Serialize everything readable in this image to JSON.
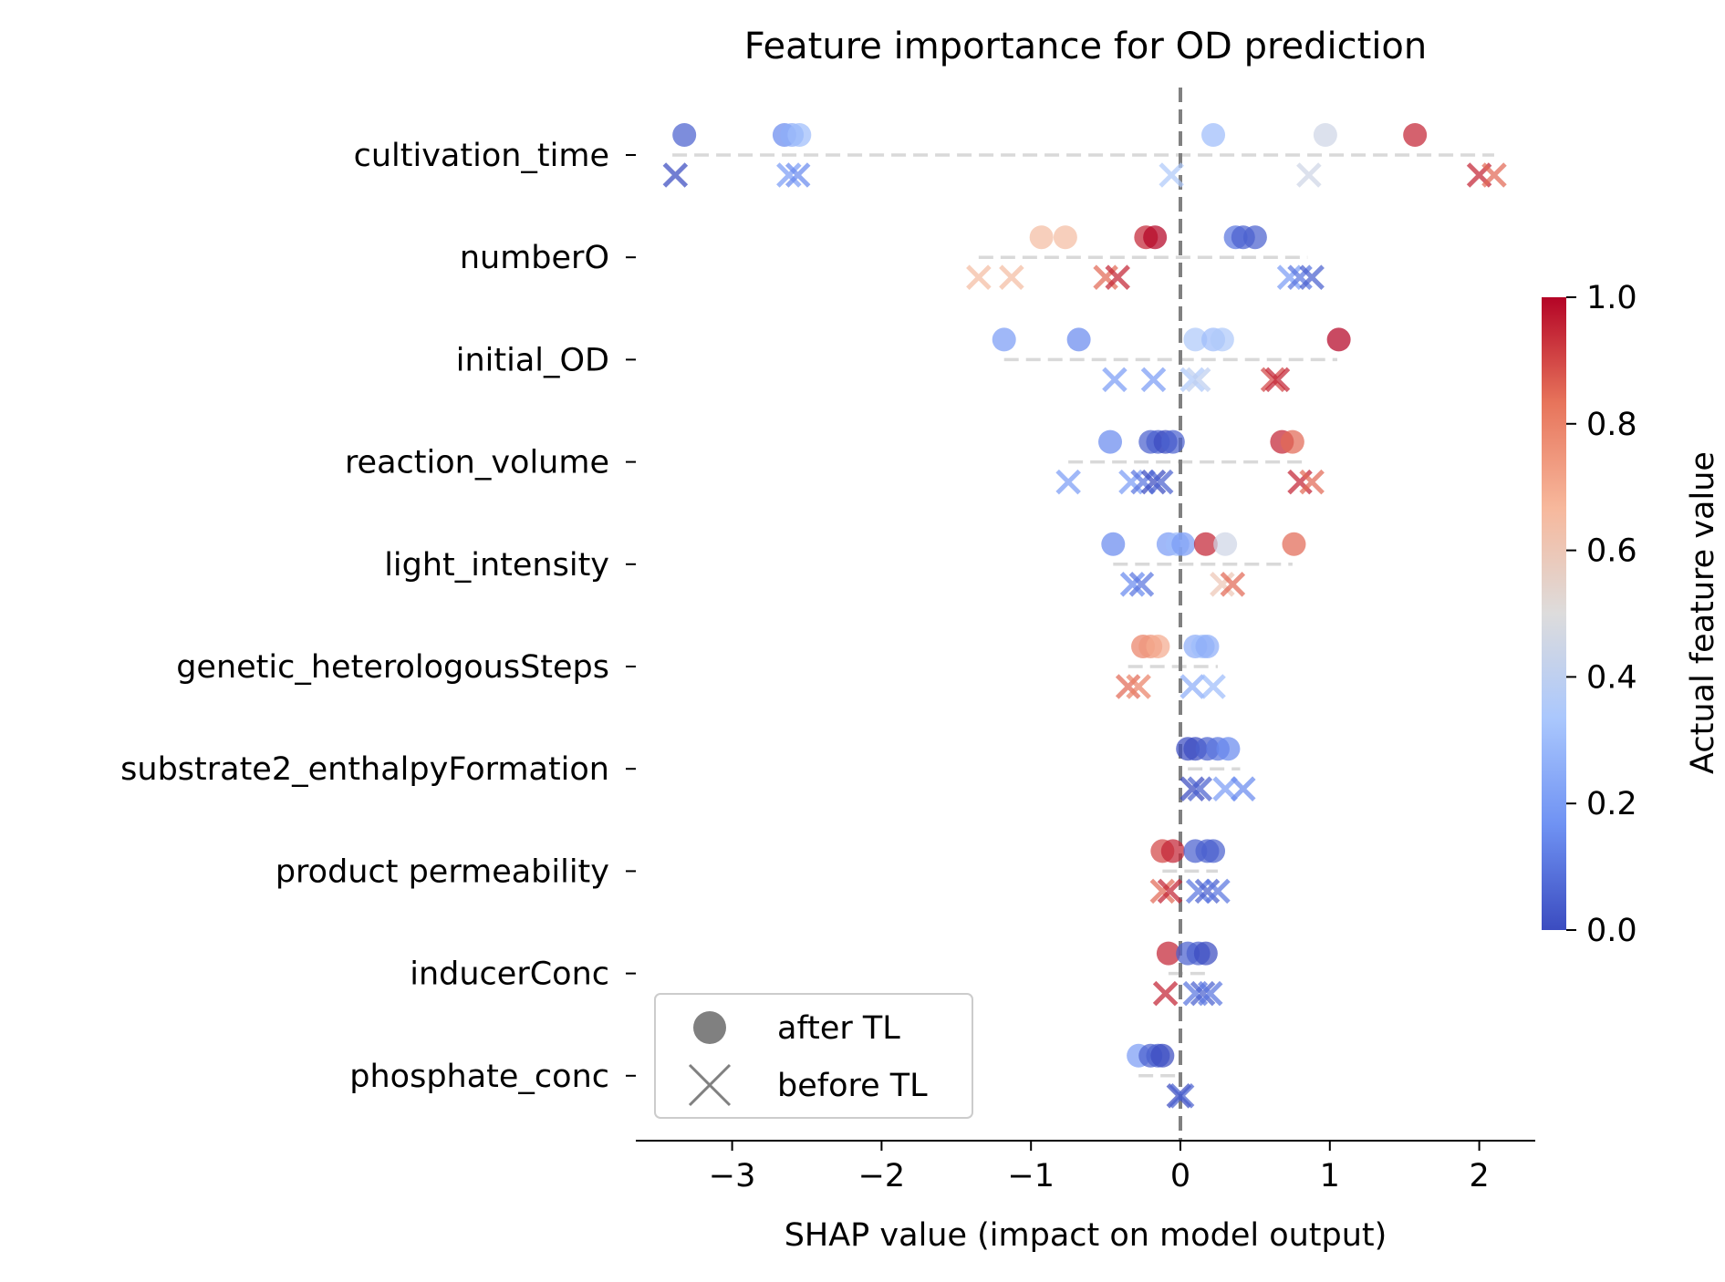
{
  "chart_data": {
    "type": "scatter",
    "title": "Feature importance for OD prediction",
    "xlabel": "SHAP value (impact on model output)",
    "ylabel": "",
    "xlim": [
      -3.65,
      2.4
    ],
    "x_ticks": [
      -3,
      -2,
      -1,
      0,
      1,
      2
    ],
    "x_tick_labels": [
      "−3",
      "−2",
      "−1",
      "0",
      "1",
      "2"
    ],
    "zero_line": {
      "x": 0,
      "style": "dashed",
      "color": "#808080"
    },
    "features": [
      "cultivation_time",
      "numberO",
      "initial_OD",
      "reaction_volume",
      "light_intensity",
      "genetic_heterologousSteps",
      "substrate2_enthalpyFormation",
      "product permeability",
      "inducerConc",
      "phosphate_conc"
    ],
    "range_lines": [
      {
        "feature": "cultivation_time",
        "min": -3.4,
        "max": 2.1
      },
      {
        "feature": "numberO",
        "min": -1.35,
        "max": 0.85
      },
      {
        "feature": "initial_OD",
        "min": -1.18,
        "max": 1.05
      },
      {
        "feature": "reaction_volume",
        "min": -0.75,
        "max": 0.85
      },
      {
        "feature": "light_intensity",
        "min": -0.45,
        "max": 0.75
      },
      {
        "feature": "genetic_heterologousSteps",
        "min": -0.35,
        "max": 0.25
      },
      {
        "feature": "substrate2_enthalpyFormation",
        "min": 0.05,
        "max": 0.4
      },
      {
        "feature": "product permeability",
        "min": -0.12,
        "max": 0.25
      },
      {
        "feature": "inducerConc",
        "min": -0.08,
        "max": 0.2
      },
      {
        "feature": "phosphate_conc",
        "min": -0.28,
        "max": 0.0
      }
    ],
    "series": [
      {
        "name": "after TL",
        "marker": "circle",
        "points": {
          "cultivation_time": [
            [
              -3.32,
              0.05
            ],
            [
              -2.65,
              0.15
            ],
            [
              -2.6,
              0.25
            ],
            [
              -2.55,
              0.3
            ],
            [
              0.22,
              0.3
            ],
            [
              0.97,
              0.45
            ],
            [
              1.57,
              0.95
            ]
          ],
          "numberO": [
            [
              -0.93,
              0.65
            ],
            [
              -0.77,
              0.65
            ],
            [
              -0.23,
              0.95
            ],
            [
              -0.17,
              1.0
            ],
            [
              0.37,
              0.1
            ],
            [
              0.42,
              0.05
            ],
            [
              0.5,
              0.05
            ]
          ],
          "initial_OD": [
            [
              -1.18,
              0.2
            ],
            [
              -0.68,
              0.15
            ],
            [
              0.1,
              0.35
            ],
            [
              0.22,
              0.3
            ],
            [
              0.28,
              0.35
            ],
            [
              1.06,
              1.0
            ]
          ],
          "reaction_volume": [
            [
              -0.47,
              0.15
            ],
            [
              -0.2,
              0.05
            ],
            [
              -0.15,
              0.05
            ],
            [
              -0.1,
              0.0
            ],
            [
              -0.05,
              0.05
            ],
            [
              0.68,
              0.95
            ],
            [
              0.75,
              0.85
            ]
          ],
          "light_intensity": [
            [
              -0.45,
              0.15
            ],
            [
              -0.08,
              0.2
            ],
            [
              -0.02,
              0.3
            ],
            [
              0.02,
              0.2
            ],
            [
              0.17,
              0.95
            ],
            [
              0.3,
              0.45
            ],
            [
              0.76,
              0.85
            ]
          ],
          "genetic_heterologousSteps": [
            [
              -0.25,
              0.8
            ],
            [
              -0.2,
              0.75
            ],
            [
              -0.15,
              0.7
            ],
            [
              0.1,
              0.25
            ],
            [
              0.15,
              0.3
            ],
            [
              0.18,
              0.25
            ]
          ],
          "substrate2_enthalpyFormation": [
            [
              0.05,
              0.0
            ],
            [
              0.1,
              0.0
            ],
            [
              0.18,
              0.05
            ],
            [
              0.25,
              0.1
            ],
            [
              0.32,
              0.15
            ]
          ],
          "product permeability": [
            [
              -0.12,
              0.9
            ],
            [
              -0.05,
              0.95
            ],
            [
              0.1,
              0.05
            ],
            [
              0.18,
              0.05
            ],
            [
              0.22,
              0.05
            ]
          ],
          "inducerConc": [
            [
              -0.08,
              0.95
            ],
            [
              0.05,
              0.05
            ],
            [
              0.12,
              0.05
            ],
            [
              0.17,
              0.0
            ]
          ],
          "phosphate_conc": [
            [
              -0.28,
              0.2
            ],
            [
              -0.2,
              0.05
            ],
            [
              -0.15,
              0.05
            ],
            [
              -0.12,
              0.0
            ]
          ]
        }
      },
      {
        "name": "before TL",
        "marker": "x",
        "points": {
          "cultivation_time": [
            [
              -3.38,
              0.0
            ],
            [
              -2.62,
              0.2
            ],
            [
              -2.56,
              0.15
            ],
            [
              -0.06,
              0.35
            ],
            [
              0.86,
              0.45
            ],
            [
              2.0,
              0.95
            ],
            [
              2.1,
              0.85
            ]
          ],
          "numberO": [
            [
              -1.35,
              0.65
            ],
            [
              -1.13,
              0.65
            ],
            [
              -0.5,
              0.85
            ],
            [
              -0.42,
              0.95
            ],
            [
              0.73,
              0.2
            ],
            [
              0.8,
              0.1
            ],
            [
              0.88,
              0.05
            ]
          ],
          "initial_OD": [
            [
              -0.44,
              0.2
            ],
            [
              -0.18,
              0.2
            ],
            [
              0.08,
              0.35
            ],
            [
              0.12,
              0.4
            ],
            [
              0.62,
              0.9
            ],
            [
              0.65,
              0.95
            ]
          ],
          "reaction_volume": [
            [
              -0.75,
              0.2
            ],
            [
              -0.33,
              0.2
            ],
            [
              -0.25,
              0.1
            ],
            [
              -0.18,
              0.0
            ],
            [
              -0.13,
              0.05
            ],
            [
              0.8,
              0.95
            ],
            [
              0.88,
              0.85
            ]
          ],
          "light_intensity": [
            [
              -0.32,
              0.15
            ],
            [
              -0.26,
              0.1
            ],
            [
              0.28,
              0.6
            ],
            [
              0.35,
              0.85
            ]
          ],
          "genetic_heterologousSteps": [
            [
              -0.35,
              0.85
            ],
            [
              -0.28,
              0.8
            ],
            [
              0.08,
              0.25
            ],
            [
              0.22,
              0.3
            ]
          ],
          "substrate2_enthalpyFormation": [
            [
              0.08,
              0.0
            ],
            [
              0.13,
              0.05
            ],
            [
              0.3,
              0.2
            ],
            [
              0.42,
              0.15
            ]
          ],
          "product permeability": [
            [
              -0.12,
              0.85
            ],
            [
              -0.07,
              0.95
            ],
            [
              0.12,
              0.1
            ],
            [
              0.18,
              0.05
            ],
            [
              0.25,
              0.1
            ]
          ],
          "inducerConc": [
            [
              -0.1,
              0.95
            ],
            [
              0.1,
              0.1
            ],
            [
              0.15,
              0.05
            ],
            [
              0.2,
              0.1
            ]
          ],
          "phosphate_conc": [
            [
              -0.01,
              0.0
            ],
            [
              0.01,
              0.05
            ]
          ]
        }
      }
    ],
    "colorbar": {
      "label": "Actual feature value",
      "colormap": "coolwarm",
      "min": 0.0,
      "max": 1.0,
      "ticks": [
        "0.0",
        "0.2",
        "0.4",
        "0.6",
        "0.8",
        "1.0"
      ],
      "colors": [
        "#3b4cc0",
        "#6f92f3",
        "#aac7fd",
        "#dddcdc",
        "#f7b89c",
        "#e7745b",
        "#b40426"
      ]
    },
    "legend": {
      "placement": "lower-left",
      "entries": [
        {
          "label": "after TL",
          "marker": "circle"
        },
        {
          "label": "before TL",
          "marker": "x"
        }
      ]
    }
  }
}
